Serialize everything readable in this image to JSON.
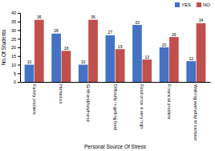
{
  "chart_data": {
    "type": "bar",
    "categories": [
      "Family problem",
      "Homesick",
      "Girlfriend/boyfriend",
      "Difficulty in getting food",
      "Food price is very high",
      "Financial problem",
      "Walking everyday to campus"
    ],
    "series": [
      {
        "name": "YES",
        "color": "#4472C4",
        "values": [
          10,
          28,
          10,
          27,
          33,
          20,
          12
        ]
      },
      {
        "name": "NO",
        "color": "#C0504D",
        "values": [
          36,
          18,
          36,
          19,
          13,
          26,
          34
        ]
      }
    ],
    "xlabel": "Personal Source Of Stress",
    "ylabel": "No.Of Students",
    "ylim": [
      0,
      40
    ],
    "yticks": [
      0,
      5,
      10,
      15,
      20,
      25,
      30,
      35,
      40
    ],
    "data_labels": true,
    "legend": "upper right"
  }
}
